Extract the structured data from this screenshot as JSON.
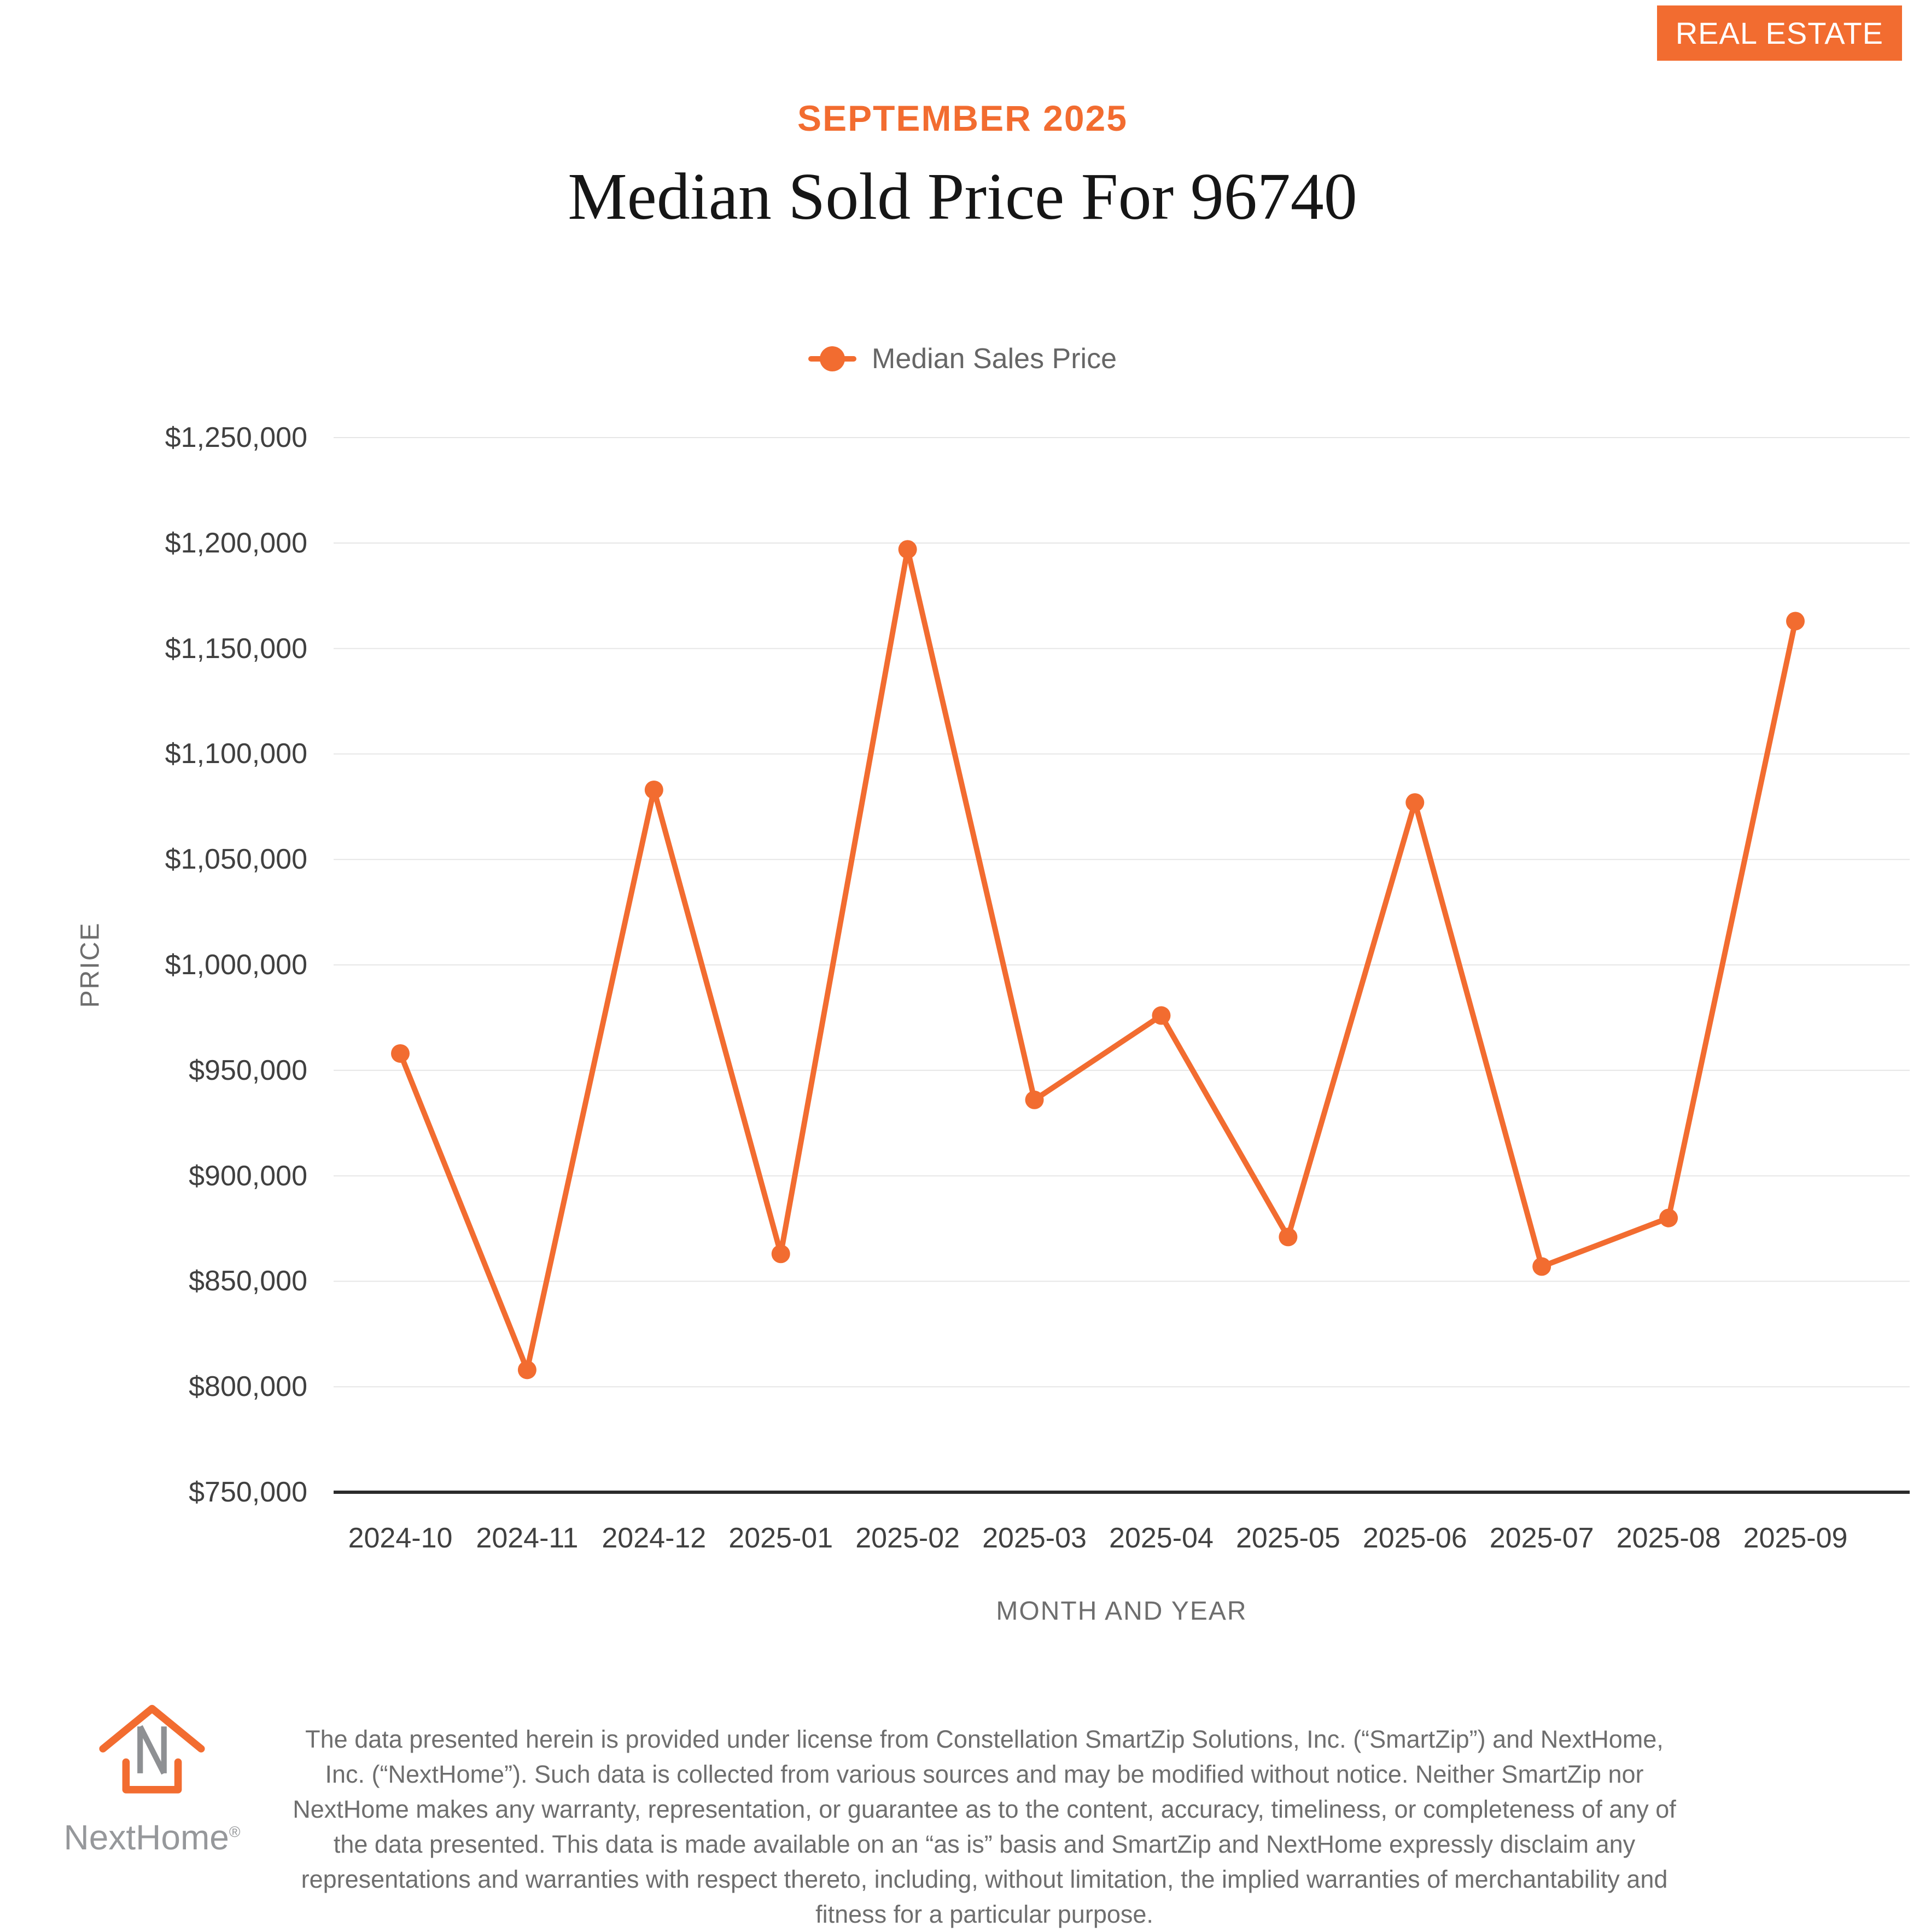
{
  "header": {
    "badge": "REAL ESTATE",
    "subtitle": "SEPTEMBER 2025",
    "title": "Median Sold Price For 96740"
  },
  "colors": {
    "accent_orange": "#F26C30",
    "title_text": "#161616",
    "axis_text": "#404040",
    "muted_text": "#6E6E6E",
    "gridline": "#E6E6E6",
    "axis_line": "#2B2B2B",
    "brand_gray": "#96989B"
  },
  "chart_data": {
    "type": "line",
    "title": "Median Sold Price For 96740",
    "categories": [
      "2024-10",
      "2024-11",
      "2024-12",
      "2025-01",
      "2025-02",
      "2025-03",
      "2025-04",
      "2025-05",
      "2025-06",
      "2025-07",
      "2025-08",
      "2025-09"
    ],
    "series": [
      {
        "name": "Median Sales Price",
        "color": "#F26C30",
        "values": [
          958000,
          808000,
          1083000,
          863000,
          1197000,
          936000,
          976000,
          871000,
          1077000,
          857000,
          880000,
          1163000
        ]
      }
    ],
    "xlabel": "MONTH AND YEAR",
    "ylabel": "PRICE",
    "ylim": [
      750000,
      1250000
    ],
    "y_tick_step": 50000,
    "y_ticks": [
      {
        "value": 750000,
        "label": "$750,000"
      },
      {
        "value": 800000,
        "label": "$800,000"
      },
      {
        "value": 850000,
        "label": "$850,000"
      },
      {
        "value": 900000,
        "label": "$900,000"
      },
      {
        "value": 950000,
        "label": "$950,000"
      },
      {
        "value": 1000000,
        "label": "$1,000,000"
      },
      {
        "value": 1050000,
        "label": "$1,050,000"
      },
      {
        "value": 1100000,
        "label": "$1,100,000"
      },
      {
        "value": 1150000,
        "label": "$1,150,000"
      },
      {
        "value": 1200000,
        "label": "$1,200,000"
      },
      {
        "value": 1250000,
        "label": "$1,250,000"
      }
    ],
    "grid": true,
    "marker": "circle",
    "legend_position": "top-center"
  },
  "footer": {
    "brand": "NextHome",
    "registered_mark": "®",
    "disclaimer": "The data presented herein is provided under license from Constellation SmartZip Solutions, Inc. (“SmartZip”) and NextHome, Inc. (“NextHome”). Such data is collected from various sources and may be modified without notice. Neither SmartZip nor NextHome makes any warranty, representation, or guarantee as to the content, accuracy, timeliness, or completeness of any of the data presented. This data is made available on an “as is” basis and SmartZip and NextHome expressly disclaim any representations and warranties with respect thereto, including, without limitation, the implied warranties of merchantability and fitness for a particular purpose."
  }
}
